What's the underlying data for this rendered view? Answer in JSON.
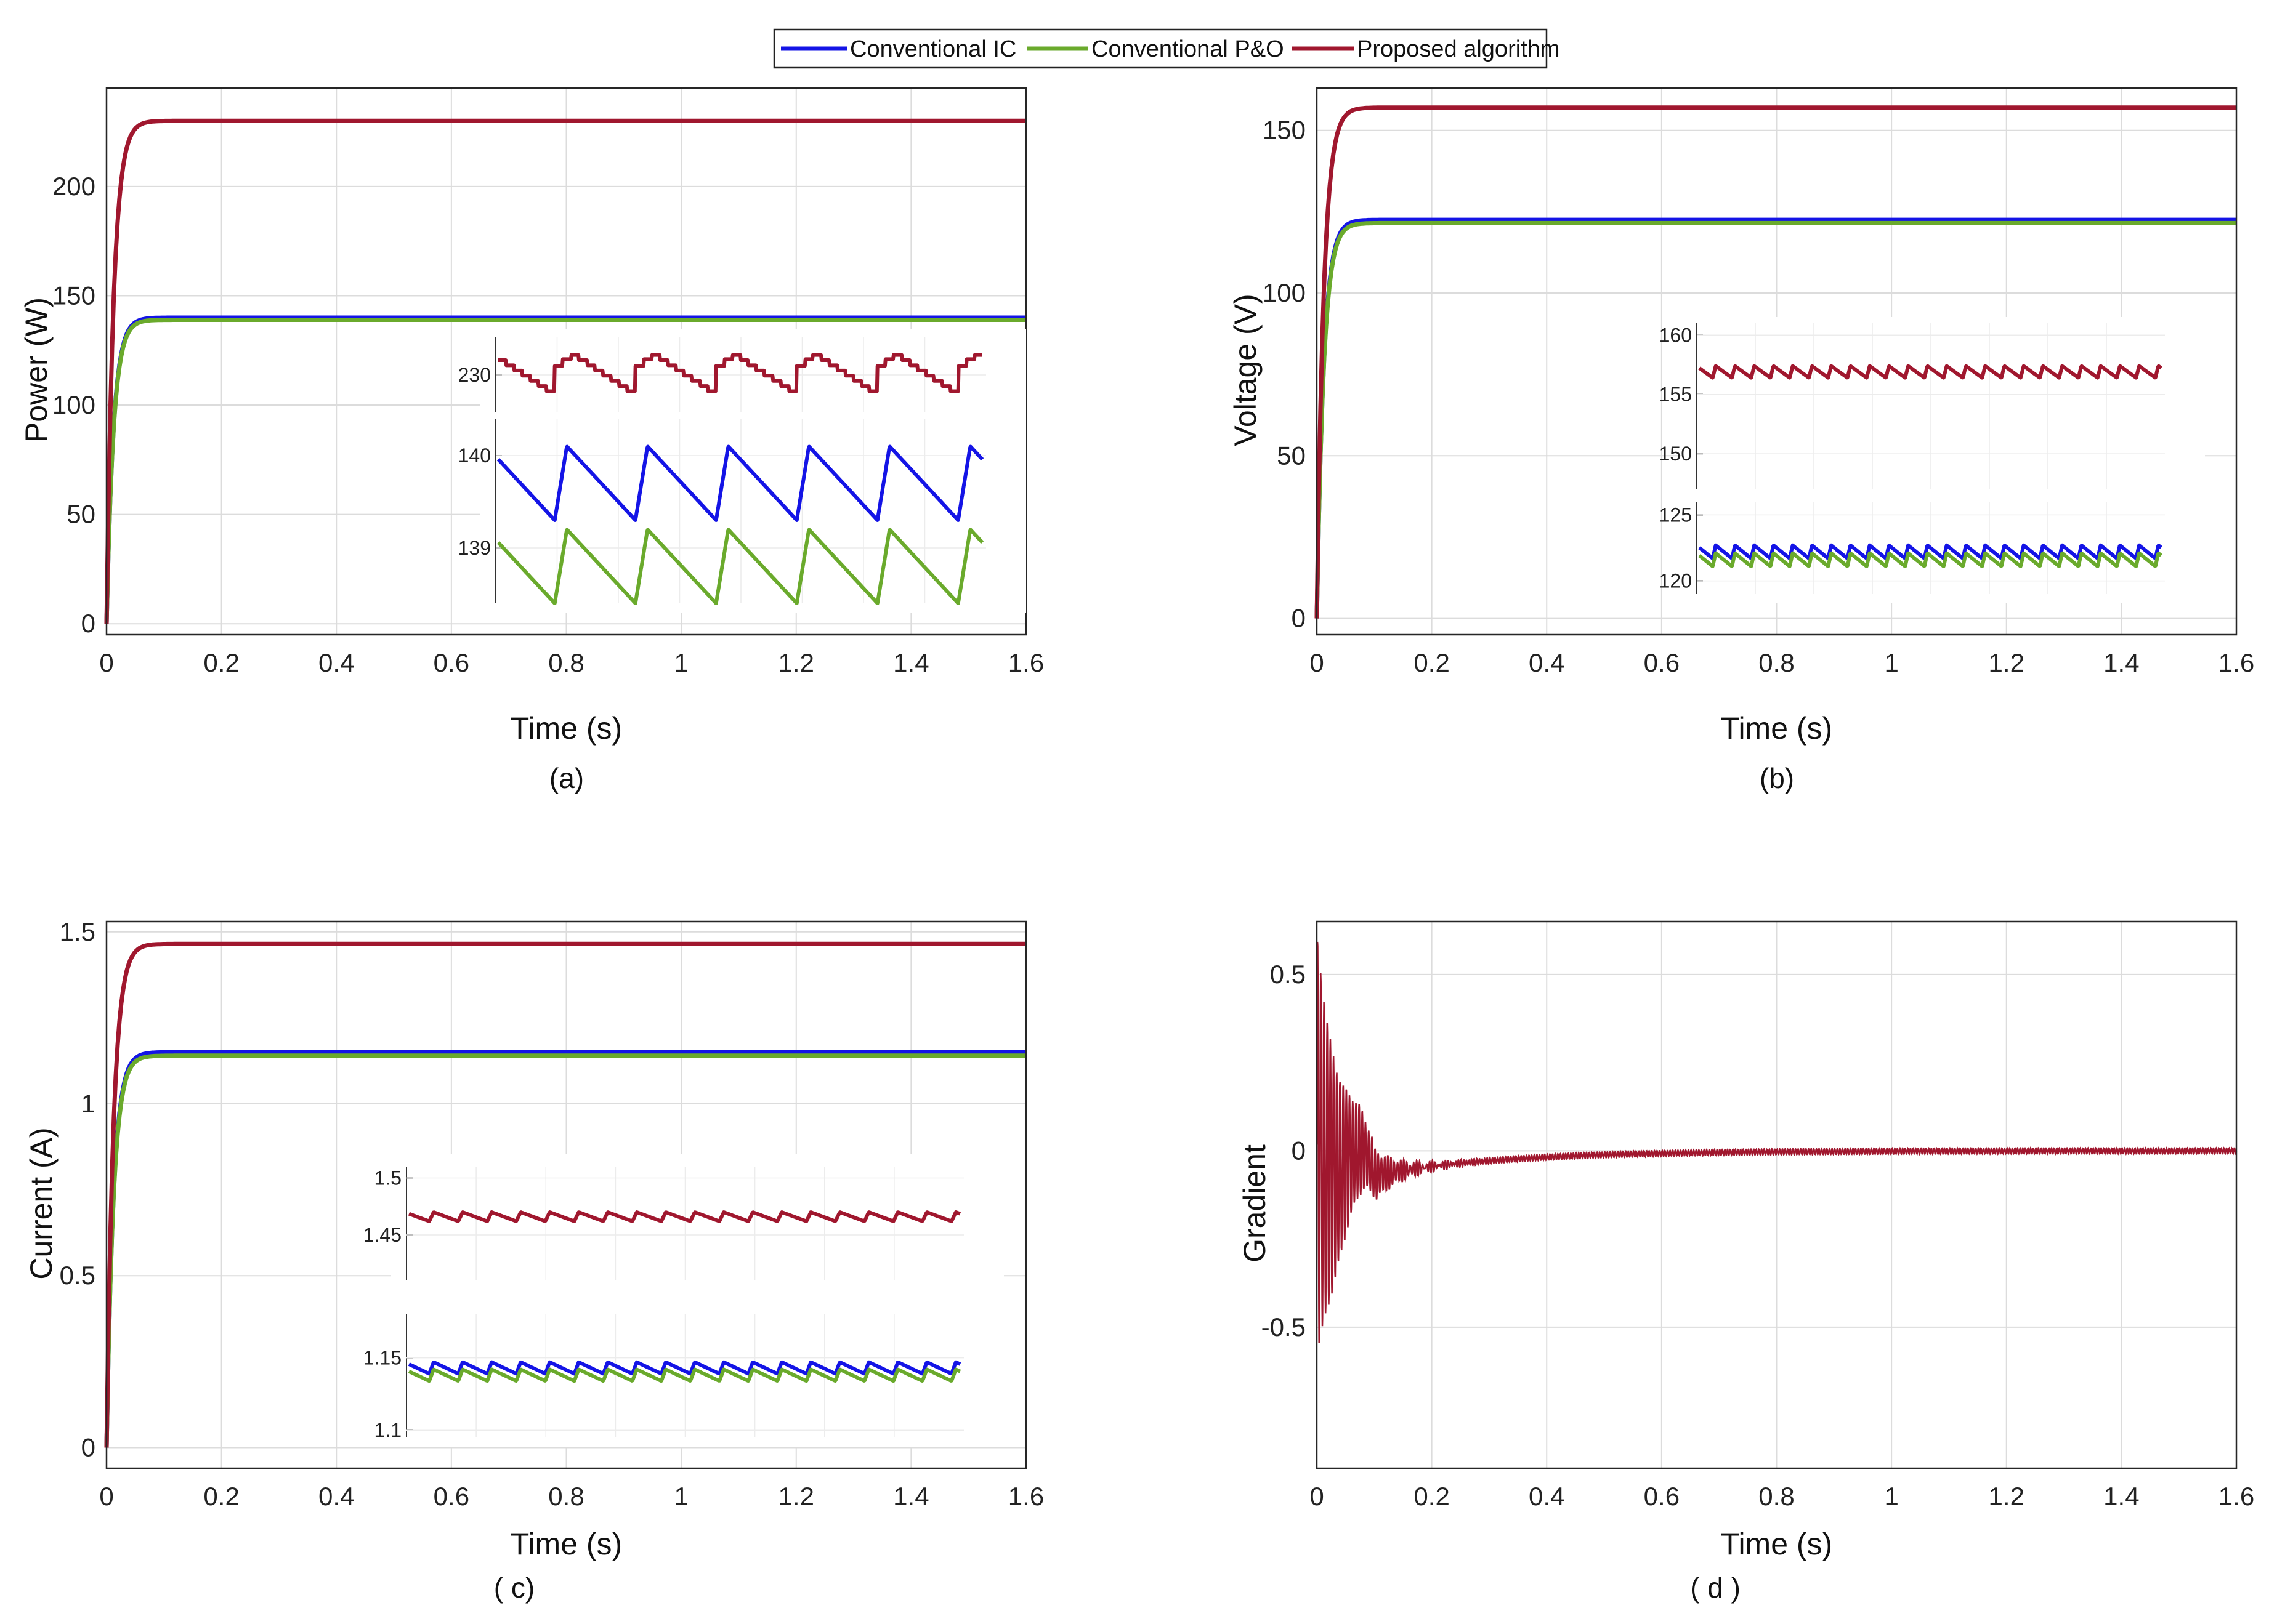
{
  "colors": {
    "ic": "#1414e6",
    "po": "#6aaa2c",
    "prop": "#a0172e"
  },
  "legend": [
    "Conventional IC",
    "Conventional P&O",
    "Proposed algorithm"
  ],
  "chart_data": [
    {
      "type": "line",
      "caption": "(a)",
      "xlabel": "Time (s)",
      "ylabel": "Power (W)",
      "xlim": [
        0,
        1.6
      ],
      "ylim": [
        -5,
        245
      ],
      "xticks": [
        "0",
        "0.2",
        "0.4",
        "0.6",
        "0.8",
        "1",
        "1.2",
        "1.4",
        "1.6"
      ],
      "yticks": [
        "0",
        "50",
        "100",
        "150",
        "200"
      ],
      "tau": 0.012,
      "series": [
        {
          "name": "Conventional IC",
          "steady": 140,
          "key": "ic"
        },
        {
          "name": "Conventional P&O",
          "steady": 139,
          "key": "po"
        },
        {
          "name": "Proposed algorithm",
          "steady": 230,
          "key": "prop"
        }
      ],
      "inset": {
        "panels": [
          {
            "ylim": [
              228.5,
              231.5
            ],
            "yticks": [
              "230"
            ],
            "series": [
              {
                "name": "Proposed algorithm",
                "key": "prop",
                "base": 230,
                "amp": 0.9,
                "shape": "step-saw",
                "periods": 6
              }
            ]
          },
          {
            "ylim": [
              138.4,
              140.4
            ],
            "yticks": [
              "140",
              "139"
            ],
            "series": [
              {
                "name": "Conventional IC",
                "key": "ic",
                "base": 139.7,
                "amp": 0.4,
                "shape": "saw",
                "periods": 6
              },
              {
                "name": "Conventional P&O",
                "key": "po",
                "base": 138.8,
                "amp": 0.4,
                "shape": "saw",
                "periods": 6
              }
            ]
          }
        ]
      }
    },
    {
      "type": "line",
      "caption": "(b)",
      "xlabel": "Time (s)",
      "ylabel": "Voltage (V)",
      "xlim": [
        0,
        1.6
      ],
      "ylim": [
        -5,
        163
      ],
      "xticks": [
        "0",
        "0.2",
        "0.4",
        "0.6",
        "0.8",
        "1",
        "1.2",
        "1.4",
        "1.6"
      ],
      "yticks": [
        "0",
        "50",
        "100",
        "150"
      ],
      "tau": 0.012,
      "series": [
        {
          "name": "Conventional IC",
          "steady": 122.5,
          "key": "ic"
        },
        {
          "name": "Conventional P&O",
          "steady": 121.5,
          "key": "po"
        },
        {
          "name": "Proposed algorithm",
          "steady": 157,
          "key": "prop"
        }
      ],
      "inset": {
        "panels": [
          {
            "ylim": [
              147,
              161
            ],
            "yticks": [
              "160",
              "155",
              "150"
            ],
            "series": [
              {
                "name": "Proposed algorithm",
                "key": "prop",
                "base": 156.9,
                "amp": 0.5,
                "shape": "saw",
                "periods": 24
              }
            ]
          },
          {
            "ylim": [
              119,
              126
            ],
            "yticks": [
              "125",
              "120"
            ],
            "series": [
              {
                "name": "Conventional IC",
                "key": "ic",
                "base": 122.2,
                "amp": 0.5,
                "shape": "saw",
                "periods": 24
              },
              {
                "name": "Conventional P&O",
                "key": "po",
                "base": 121.6,
                "amp": 0.5,
                "shape": "saw",
                "periods": 24
              }
            ]
          }
        ]
      }
    },
    {
      "type": "line",
      "caption": "( c)",
      "xlabel": "Time (s)",
      "ylabel": "Current (A)",
      "xlim": [
        0,
        1.6
      ],
      "ylim": [
        -0.06,
        1.53
      ],
      "xticks": [
        "0",
        "0.2",
        "0.4",
        "0.6",
        "0.8",
        "1",
        "1.2",
        "1.4",
        "1.6"
      ],
      "yticks": [
        "0",
        "0.5",
        "1",
        "1.5"
      ],
      "tau": 0.012,
      "series": [
        {
          "name": "Conventional IC",
          "steady": 1.15,
          "key": "ic"
        },
        {
          "name": "Conventional P&O",
          "steady": 1.14,
          "key": "po"
        },
        {
          "name": "Proposed algorithm",
          "steady": 1.465,
          "key": "prop"
        }
      ],
      "inset": {
        "panels": [
          {
            "ylim": [
              1.41,
              1.51
            ],
            "yticks": [
              "1.5",
              "1.45"
            ],
            "series": [
              {
                "name": "Proposed algorithm",
                "key": "prop",
                "base": 1.466,
                "amp": 0.004,
                "shape": "saw",
                "periods": 19
              }
            ]
          },
          {
            "ylim": [
              1.095,
              1.18
            ],
            "yticks": [
              "1.15",
              "1.1"
            ],
            "series": [
              {
                "name": "Conventional IC",
                "key": "ic",
                "base": 1.143,
                "amp": 0.004,
                "shape": "saw",
                "periods": 19
              },
              {
                "name": "Conventional P&O",
                "key": "po",
                "base": 1.138,
                "amp": 0.004,
                "shape": "saw",
                "periods": 19
              }
            ]
          }
        ]
      }
    },
    {
      "type": "line",
      "caption": "( d )",
      "xlabel": "Time (s)",
      "ylabel": "Gradient",
      "xlim": [
        0,
        1.6
      ],
      "ylim": [
        -0.9,
        0.65
      ],
      "xticks": [
        "0",
        "0.2",
        "0.4",
        "0.6",
        "0.8",
        "1",
        "1.2",
        "1.4",
        "1.6"
      ],
      "yticks": [
        "-0.5",
        "0",
        "0.5"
      ],
      "series": [
        {
          "name": "Proposed algorithm",
          "key": "prop",
          "shape": "damped-oscillation",
          "initial_amplitude": 0.6,
          "settle_time": 0.15,
          "drift_start": -0.07,
          "steady": 0
        }
      ]
    }
  ]
}
